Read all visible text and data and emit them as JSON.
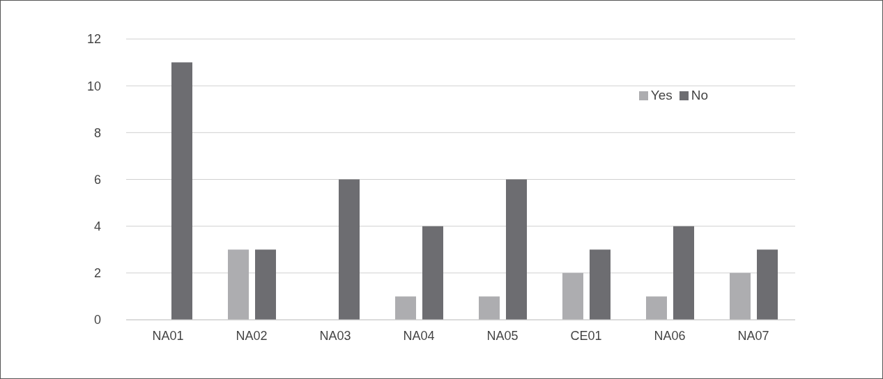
{
  "chart_data": {
    "type": "bar",
    "categories": [
      "NA01",
      "NA02",
      "NA03",
      "NA04",
      "NA05",
      "CE01",
      "NA06",
      "NA07"
    ],
    "series": [
      {
        "name": "Yes",
        "color": "#adadb0",
        "values": [
          0,
          3,
          0,
          1,
          1,
          2,
          1,
          2
        ]
      },
      {
        "name": "No",
        "color": "#6d6d71",
        "values": [
          11,
          3,
          6,
          4,
          6,
          3,
          4,
          3
        ]
      }
    ],
    "ylim": [
      0,
      12
    ],
    "yticks": [
      0,
      2,
      4,
      6,
      8,
      10,
      12
    ],
    "grid": "y",
    "legend": "top right"
  }
}
